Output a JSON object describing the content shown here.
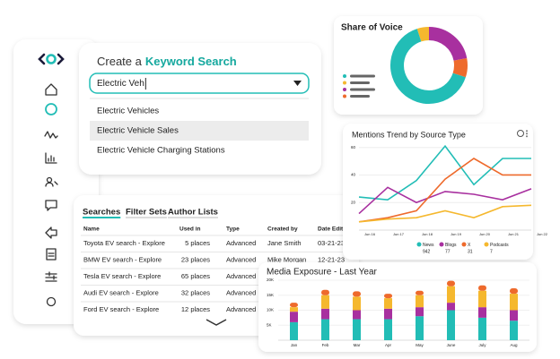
{
  "keyword_search": {
    "title_prefix": "Create a",
    "title_emphasis": "Keyword Search",
    "input": "Electric Veh",
    "options": [
      "Electric Vehicles",
      "Electric Vehicle Sales",
      "Electric Vehicle Charging Stations"
    ],
    "highlighted": 1
  },
  "searches": {
    "tabs": [
      "Searches",
      "Filter Sets",
      "Author Lists"
    ],
    "active_tab": 0,
    "columns": [
      "Name",
      "Used in",
      "Type",
      "Created by",
      "Date Edited"
    ],
    "rows": [
      [
        "Toyota EV search - Explore",
        "5 places",
        "Advanced",
        "Jane Smith",
        "03-21-23"
      ],
      [
        "BMW EV search - Explore",
        "23 places",
        "Advanced",
        "Mike Morgan",
        "12-21-23"
      ],
      [
        "Tesla EV search - Explore",
        "65 places",
        "Advanced"
      ],
      [
        "Audi EV search - Explore",
        "32 places",
        "Advanced"
      ],
      [
        "Ford EV search - Explore",
        "12 places",
        "Advanced"
      ]
    ]
  },
  "share_of_voice": {
    "type": "pie",
    "title": "Share of Voice",
    "donut": true,
    "values": [
      5,
      22,
      8,
      65
    ],
    "colors": [
      "#f5b82e",
      "#a8309f",
      "#ee6a2c",
      "#22bdb6"
    ]
  },
  "mentions_trend": {
    "type": "line",
    "title": "Mentions Trend by Source Type",
    "categories": [
      "Jun 16",
      "Jun 17",
      "Jun 18",
      "Jun 19",
      "Jun 20",
      "Jun 21",
      "Jun 22"
    ],
    "ylim": [
      0,
      65
    ],
    "yticks": [
      20,
      40,
      60
    ],
    "grid": true,
    "series": [
      {
        "name": "News",
        "color": "#22bdb6",
        "total": 942,
        "values": [
          24,
          22,
          36,
          61,
          33,
          52,
          52
        ]
      },
      {
        "name": "Blogs",
        "color": "#a8309f",
        "total": 77,
        "values": [
          12,
          31,
          20,
          28,
          26,
          22,
          30
        ]
      },
      {
        "name": "X",
        "color": "#ee6a2c",
        "total": 31,
        "values": [
          6,
          9,
          14,
          37,
          52,
          40,
          40
        ]
      },
      {
        "name": "Podcasts",
        "color": "#f5b82e",
        "total": 7,
        "values": [
          6,
          8,
          9,
          14,
          9,
          17,
          18
        ]
      }
    ]
  },
  "media_exposure": {
    "type": "bar",
    "stacked": true,
    "title": "Media Exposure - Last Year",
    "categories": [
      "Jan",
      "Feb",
      "Mar",
      "Apr",
      "May",
      "June",
      "July",
      "Aug"
    ],
    "ylim": [
      0,
      20000
    ],
    "yticks": [
      {
        "value": 5000,
        "label": "5K"
      },
      {
        "value": 10000,
        "label": "10K"
      },
      {
        "value": 15000,
        "label": "15K"
      },
      {
        "value": 20000,
        "label": "20K"
      }
    ],
    "grid": true,
    "series": [
      {
        "color": "#22bdb6",
        "values": [
          6000,
          7000,
          7000,
          7000,
          8000,
          10000,
          7500,
          6500
        ]
      },
      {
        "color": "#a8309f",
        "values": [
          3500,
          3500,
          3000,
          3500,
          3000,
          2500,
          3500,
          3500
        ]
      },
      {
        "color": "#f5b82e",
        "values": [
          1500,
          4500,
          4500,
          3500,
          4000,
          5500,
          5500,
          5500
        ]
      },
      {
        "color": "#ee6a2c",
        "values": [
          1500,
          1800,
          1800,
          1500,
          1500,
          1800,
          1800,
          1800
        ]
      }
    ]
  }
}
